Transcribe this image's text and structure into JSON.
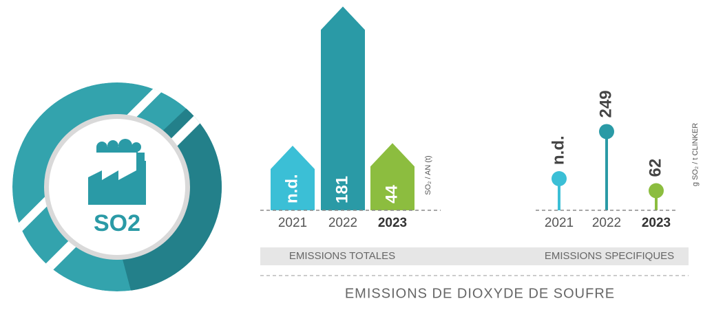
{
  "icon_label": "SO2",
  "title": "EMISSIONS DE DIOXYDE DE SOUFRE",
  "chart_data": [
    {
      "type": "bar",
      "subtitle": "EMISSIONS TOTALES",
      "axis_label": "SO₂ / AN (t)",
      "categories": [
        "2021",
        "2022",
        "2023"
      ],
      "values": [
        null,
        181,
        44
      ],
      "value_labels": [
        "n.d.",
        "181",
        "44"
      ],
      "colors": [
        "#3bbfd6",
        "#2a9aa6",
        "#8cbd3f"
      ]
    },
    {
      "type": "lollipop",
      "subtitle": "EMISSIONS SPECIFIQUES",
      "axis_label": "g SO₂ / t CLINKER",
      "categories": [
        "2021",
        "2022",
        "2023"
      ],
      "values": [
        null,
        249,
        62
      ],
      "value_labels": [
        "n.d.",
        "249",
        "62"
      ],
      "colors": [
        "#3bbfd6",
        "#2a9aa6",
        "#8cbd3f"
      ]
    }
  ]
}
